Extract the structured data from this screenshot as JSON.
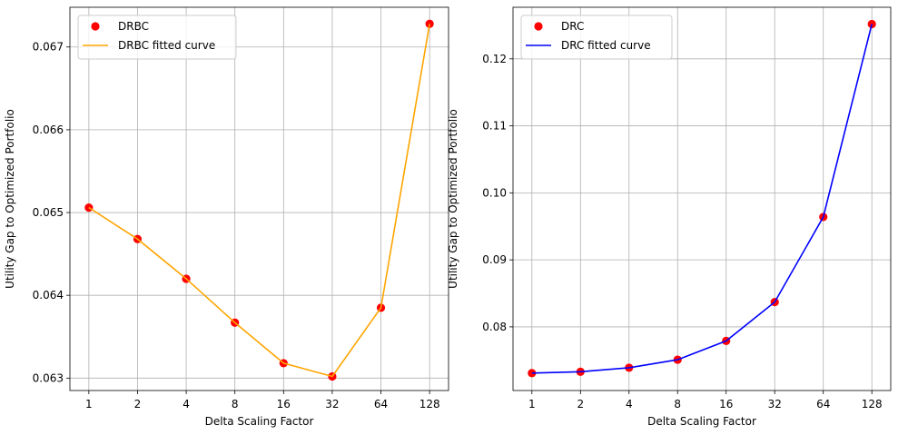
{
  "chart_data": [
    {
      "type": "line",
      "xlabel": "Delta Scaling Factor",
      "ylabel": "Utility Gap to Optimized Portfolio",
      "x_ticks": [
        "1",
        "2",
        "4",
        "8",
        "16",
        "32",
        "64",
        "128"
      ],
      "ylim": [
        0.06285,
        0.06748
      ],
      "y_ticks": [
        {
          "value": 0.063,
          "label": "0.063"
        },
        {
          "value": 0.064,
          "label": "0.064"
        },
        {
          "value": 0.065,
          "label": "0.065"
        },
        {
          "value": 0.066,
          "label": "0.066"
        },
        {
          "value": 0.067,
          "label": "0.067"
        }
      ],
      "grid": true,
      "legend_position": "upper-left",
      "series": [
        {
          "name": "DRBC",
          "kind": "scatter",
          "color": "#ff0000",
          "values": [
            0.06506,
            0.06468,
            0.0642,
            0.06367,
            0.06318,
            0.06302,
            0.06385,
            0.06728
          ]
        },
        {
          "name": "DRBC fitted curve",
          "kind": "line",
          "color": "#ffa500",
          "values": [
            0.06506,
            0.06468,
            0.0642,
            0.06367,
            0.06318,
            0.06302,
            0.06385,
            0.06728
          ]
        }
      ]
    },
    {
      "type": "line",
      "xlabel": "Delta Scaling Factor",
      "ylabel": "Utility Gap to Optimized Portfolio",
      "x_ticks": [
        "1",
        "2",
        "4",
        "8",
        "16",
        "32",
        "64",
        "128"
      ],
      "ylim": [
        0.0705,
        0.1277
      ],
      "y_ticks": [
        {
          "value": 0.08,
          "label": "0.08"
        },
        {
          "value": 0.09,
          "label": "0.09"
        },
        {
          "value": 0.1,
          "label": "0.10"
        },
        {
          "value": 0.11,
          "label": "0.11"
        },
        {
          "value": 0.12,
          "label": "0.12"
        }
      ],
      "grid": true,
      "legend_position": "upper-left",
      "series": [
        {
          "name": "DRC",
          "kind": "scatter",
          "color": "#ff0000",
          "values": [
            0.0731,
            0.0733,
            0.0739,
            0.0751,
            0.0779,
            0.0837,
            0.0964,
            0.1252
          ]
        },
        {
          "name": "DRC fitted curve",
          "kind": "line",
          "color": "#0000ff",
          "values": [
            0.0731,
            0.0733,
            0.0739,
            0.0751,
            0.0779,
            0.0837,
            0.0964,
            0.1252
          ]
        }
      ]
    }
  ]
}
